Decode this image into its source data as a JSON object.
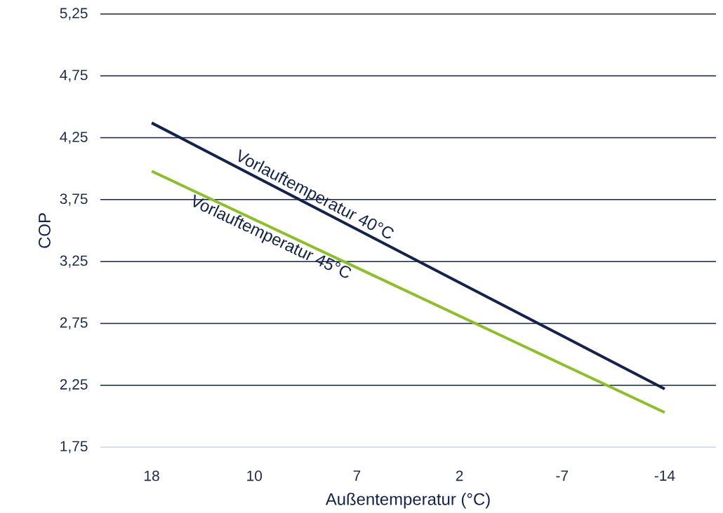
{
  "chart_data": {
    "type": "line",
    "xlabel": "Außentemperatur (°C)",
    "ylabel": "COP",
    "categories": [
      "18",
      "10",
      "7",
      "2",
      "-7",
      "-14"
    ],
    "series": [
      {
        "name": "Vorlauftemperatur 40°C",
        "color": "#14234b",
        "values": [
          4.37,
          3.94,
          3.51,
          3.08,
          2.65,
          2.22
        ]
      },
      {
        "name": "Vorlauftemperatur 45°C",
        "color": "#8dbf26",
        "values": [
          3.98,
          3.59,
          3.2,
          2.81,
          2.42,
          2.03
        ]
      }
    ],
    "ylim": [
      1.75,
      5.25
    ],
    "yticks": [
      {
        "value": 1.75,
        "label": "1,75"
      },
      {
        "value": 2.25,
        "label": "2,25"
      },
      {
        "value": 2.75,
        "label": "2,75"
      },
      {
        "value": 3.25,
        "label": "3,25"
      },
      {
        "value": 3.75,
        "label": "3,75"
      },
      {
        "value": 4.25,
        "label": "4,25"
      },
      {
        "value": 4.75,
        "label": "4,75"
      },
      {
        "value": 5.25,
        "label": "5,25"
      }
    ],
    "grid": "y",
    "legend": false,
    "marker": "none",
    "line_style": "solid"
  }
}
